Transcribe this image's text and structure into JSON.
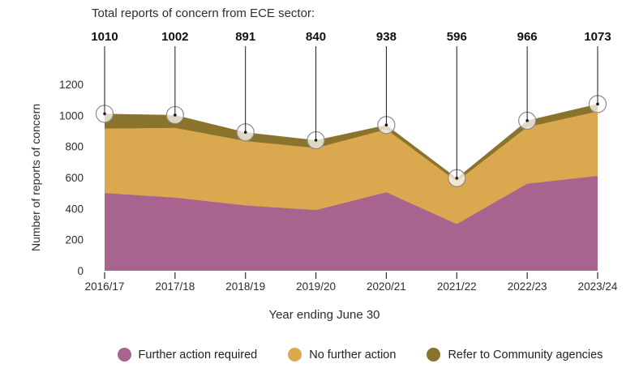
{
  "chart_data": {
    "type": "area",
    "stacked": true,
    "title": "Total reports of concern from ECE sector:",
    "xlabel": "Year ending June 30",
    "ylabel": "Number of reports of concern",
    "categories": [
      "2016/17",
      "2017/18",
      "2018/19",
      "2019/20",
      "2020/21",
      "2021/22",
      "2022/23",
      "2023/24"
    ],
    "totals": [
      1010,
      1002,
      891,
      840,
      938,
      596,
      966,
      1073
    ],
    "series": [
      {
        "name": "Further action required",
        "color": "#a8638f",
        "values": [
          500,
          470,
          420,
          390,
          505,
          300,
          560,
          610
        ]
      },
      {
        "name": "No further action",
        "color": "#d9a84f",
        "values": [
          415,
          450,
          415,
          400,
          405,
          275,
          365,
          415
        ]
      },
      {
        "name": "Refer to Community agencies",
        "color": "#8a732c",
        "values": [
          95,
          82,
          56,
          50,
          28,
          21,
          41,
          48
        ]
      }
    ],
    "y_ticks": [
      0,
      200,
      400,
      600,
      800,
      1000,
      1200
    ],
    "ylim": [
      0,
      1200
    ],
    "grid": false,
    "legend_position": "bottom",
    "marker": {
      "fill": "rgba(255,255,255,0.72)",
      "stroke": "#8a8a8a",
      "dot_color": "#1a1a1a"
    },
    "text_color": "#2d2d2d",
    "totals_color": "#111111"
  }
}
